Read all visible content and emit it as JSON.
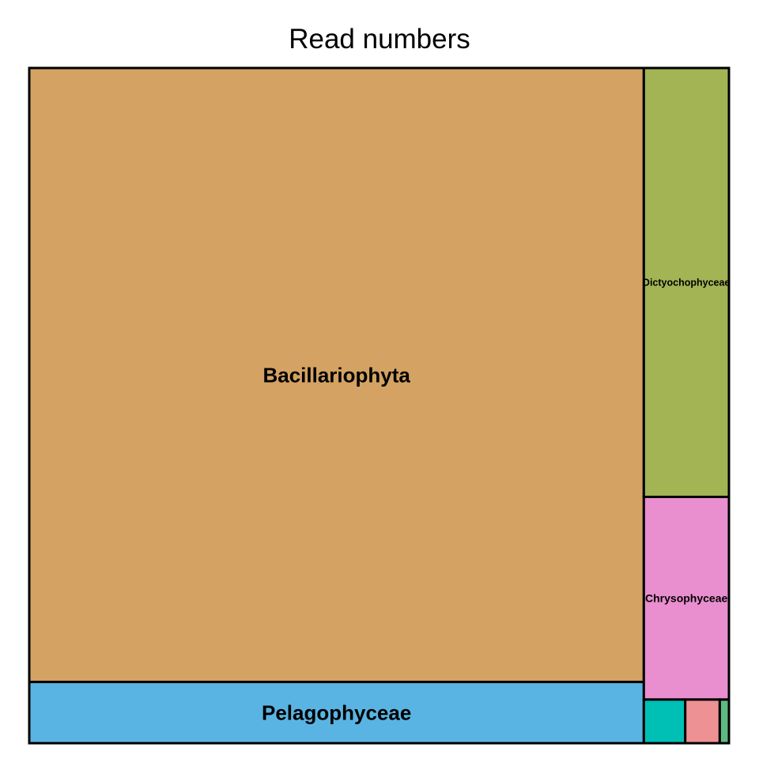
{
  "chart_data": {
    "type": "treemap",
    "title": "Read numbers",
    "unit": "reads",
    "items": [
      {
        "label": "Bacillariophyta",
        "value": 752.4,
        "color": "#D4A262",
        "show_label": true
      },
      {
        "label": "Pelagophyceae",
        "value": 75.0,
        "color": "#5AB4E3",
        "show_label": true
      },
      {
        "label": "Dictyochophyceae",
        "value": 72.8,
        "color": "#A2B454",
        "show_label": true
      },
      {
        "label": "Chrysophyceae",
        "value": 34.4,
        "color": "#E98ECF",
        "show_label": true
      },
      {
        "label": "",
        "value": 3.6,
        "color": "#00C0B6",
        "show_label": false
      },
      {
        "label": "",
        "value": 3.0,
        "color": "#EE9194",
        "show_label": false
      },
      {
        "label": "",
        "value": 0.8,
        "color": "#5EBA82",
        "show_label": false
      }
    ]
  }
}
